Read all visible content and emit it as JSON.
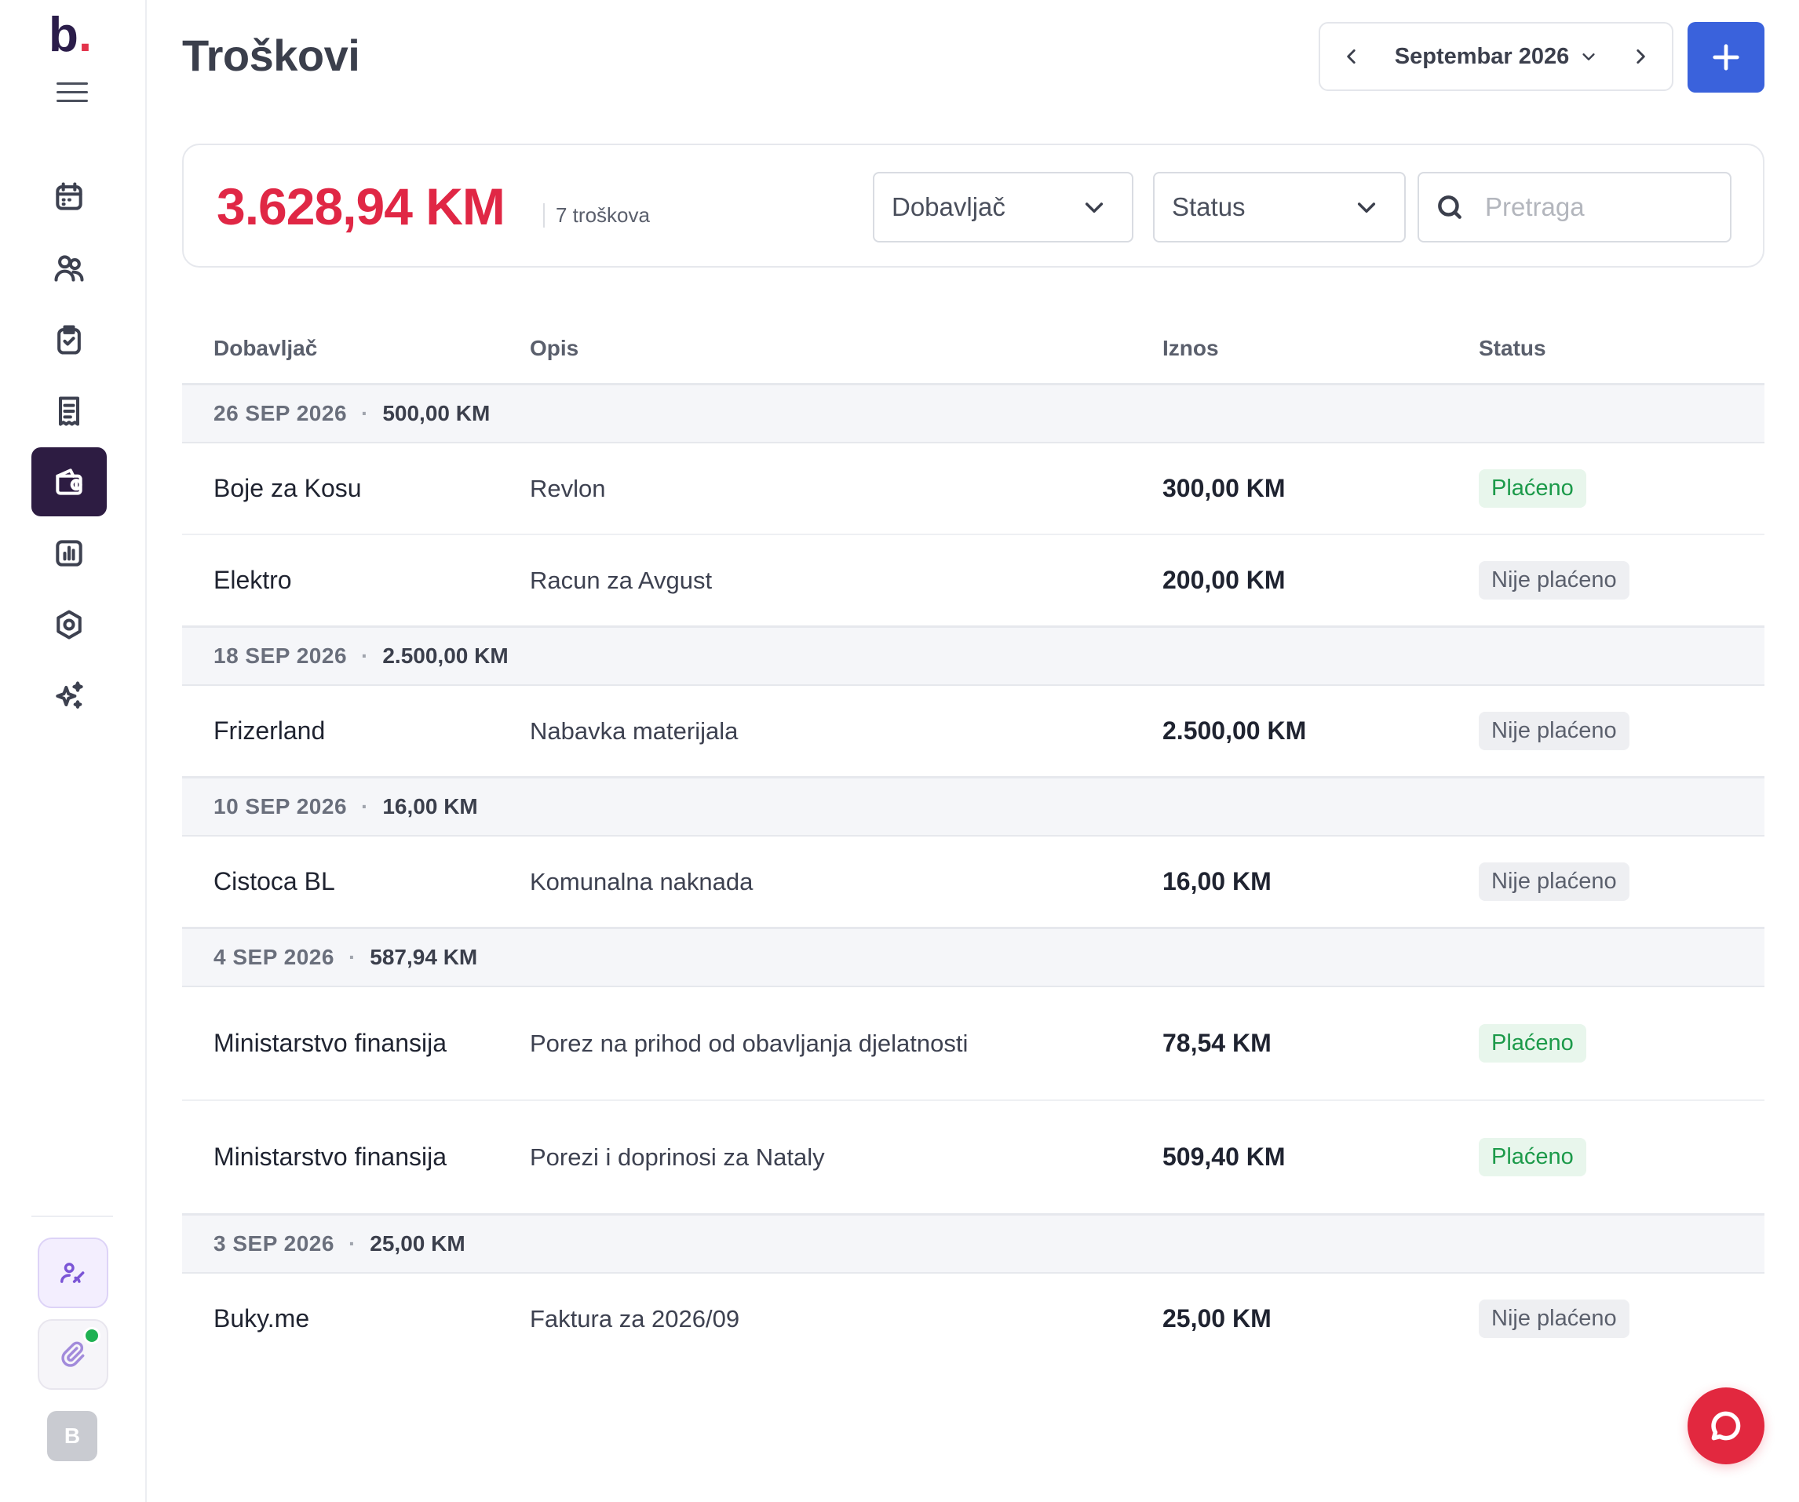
{
  "brand": {
    "logo_text": "b",
    "logo_dot": "."
  },
  "sidebar": {
    "items": [
      {
        "id": "calendar",
        "icon": "calendar-icon"
      },
      {
        "id": "clients",
        "icon": "users-icon"
      },
      {
        "id": "tasks",
        "icon": "clipboard-check-icon"
      },
      {
        "id": "invoices",
        "icon": "receipt-icon"
      },
      {
        "id": "expenses",
        "icon": "wallet-icon",
        "active": true
      },
      {
        "id": "reports",
        "icon": "chart-bar-icon"
      },
      {
        "id": "settings",
        "icon": "gear-icon"
      },
      {
        "id": "ai",
        "icon": "sparkles-icon"
      }
    ],
    "avatar_initial": "B"
  },
  "header": {
    "title": "Troškovi",
    "month": "Septembar 2026"
  },
  "summary": {
    "total": "3.628,94 KM",
    "count": "7 troškova",
    "filter_supplier": "Dobavljač",
    "filter_status": "Status",
    "search_placeholder": "Pretraga"
  },
  "table": {
    "columns": {
      "supplier": "Dobavljač",
      "description": "Opis",
      "amount": "Iznos",
      "status": "Status"
    },
    "groups": [
      {
        "date": "26 SEP 2026",
        "total": "500,00 KM",
        "rows": [
          {
            "supplier": "Boje za Kosu",
            "description": "Revlon",
            "amount": "300,00 KM",
            "status": "Plaćeno",
            "paid": true
          },
          {
            "supplier": "Elektro",
            "description": "Racun za Avgust",
            "amount": "200,00 KM",
            "status": "Nije plaćeno",
            "paid": false
          }
        ]
      },
      {
        "date": "18 SEP 2026",
        "total": "2.500,00 KM",
        "rows": [
          {
            "supplier": "Frizerland",
            "description": "Nabavka materijala",
            "amount": "2.500,00 KM",
            "status": "Nije plaćeno",
            "paid": false
          }
        ]
      },
      {
        "date": "10 SEP 2026",
        "total": "16,00 KM",
        "rows": [
          {
            "supplier": "Cistoca BL",
            "description": "Komunalna naknada",
            "amount": "16,00 KM",
            "status": "Nije plaćeno",
            "paid": false
          }
        ]
      },
      {
        "date": "4 SEP 2026",
        "total": "587,94 KM",
        "rows": [
          {
            "supplier": "Ministarstvo finansija",
            "description": "Porez na prihod od obavljanja djelatnosti",
            "amount": "78,54 KM",
            "status": "Plaćeno",
            "paid": true
          },
          {
            "supplier": "Ministarstvo finansija",
            "description": "Porezi i doprinosi za Nataly",
            "amount": "509,40 KM",
            "status": "Plaćeno",
            "paid": true
          }
        ]
      },
      {
        "date": "3 SEP 2026",
        "total": "25,00 KM",
        "rows": [
          {
            "supplier": "Buky.me",
            "description": "Faktura za 2026/09",
            "amount": "25,00 KM",
            "status": "Nije plaćeno",
            "paid": false
          }
        ]
      }
    ]
  },
  "colors": {
    "accent": "#3a62dc",
    "total_red": "#e02745",
    "active_nav": "#2d1c42",
    "paid_green": "#1c9a4a",
    "chat_red": "#e2283f"
  }
}
